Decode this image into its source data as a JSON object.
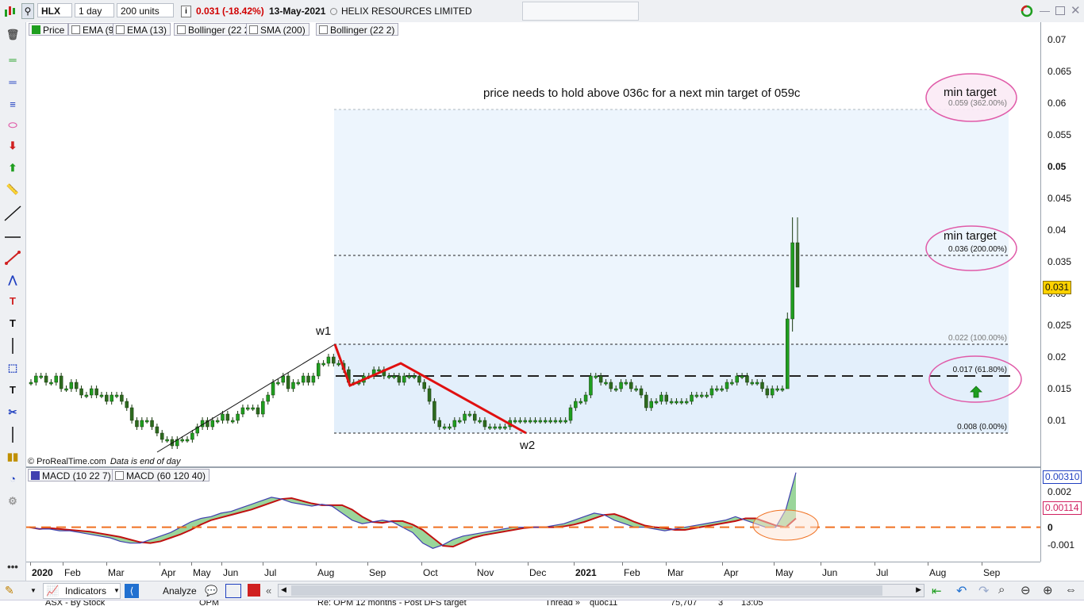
{
  "toolbar": {
    "symbol": "HLX",
    "interval": "1 day",
    "units": "200 units",
    "last_price": "0.031",
    "change": "(-18.42%)",
    "date": "13-May-2021",
    "company": "HELIX RESOURCES LIMITED",
    "change_color": "#d00000"
  },
  "legend_price": [
    "Price",
    "EMA (9)",
    "EMA (13)",
    "Bollinger (22 2)",
    "SMA (200)",
    "Bollinger (22 2)"
  ],
  "legend_macd": [
    "MACD (10 22 7)",
    "MACD (60 120 40)"
  ],
  "annotations": {
    "headline": "price needs to hold above 036c for a next min target of 059c",
    "min_target_1": "min target",
    "min_target_2": "min target",
    "w1": "w1",
    "w2": "w2",
    "fib": [
      {
        "price": 0.059,
        "label": "0.059 (362.00%)"
      },
      {
        "price": 0.036,
        "label": "0.036 (200.00%)"
      },
      {
        "price": 0.022,
        "label": "0.022 (100.00%)"
      },
      {
        "price": 0.017,
        "label": "0.017 (61.80%)"
      },
      {
        "price": 0.008,
        "label": "0.008 (0.00%)"
      }
    ],
    "copyright": "© ProRealTime.com",
    "data_note": "Data is end of day"
  },
  "price_axis": [
    "0.07",
    "0.065",
    "0.06",
    "0.055",
    "0.05",
    "0.045",
    "0.04",
    "0.035",
    "0.03",
    "0.025",
    "0.02",
    "0.015",
    "0.01"
  ],
  "price_badge": "0.031",
  "macd_axis": [
    "0.002",
    "0",
    "-0.001"
  ],
  "macd_badges": [
    "0.00310",
    "0.00114"
  ],
  "x_axis": [
    "2020",
    "Feb",
    "Mar",
    "Apr",
    "May",
    "Jun",
    "Jul",
    "Aug",
    "Sep",
    "Oct",
    "Nov",
    "Dec",
    "2021",
    "Feb",
    "Mar",
    "Apr",
    "May",
    "Jun",
    "Jul",
    "Aug",
    "Sep"
  ],
  "bottom": {
    "indicators": "Indicators",
    "analyze": "Analyze"
  },
  "status_strip": [
    "ASX - By Stock",
    "OPM",
    "Re: OPM 12 months - Post DFS target",
    "Thread »",
    "quoc11",
    "75,707",
    "3",
    "13:05"
  ],
  "colors": {
    "bar_up": "#1f9e1f",
    "bar_down": "#2d6a1e",
    "wave_red": "#e01010",
    "ellipse": "#e05aa8",
    "macd_zero": "#f07020"
  },
  "chart_data": {
    "type": "bar",
    "title": "",
    "xlabel": "",
    "ylabel": "",
    "ylim": [
      0.005,
      0.072
    ],
    "series": [
      {
        "values": [
          0.016,
          0.017,
          0.017,
          0.016,
          0.016,
          0.017,
          0.015,
          0.015,
          0.016,
          0.015,
          0.014,
          0.014,
          0.015,
          0.014,
          0.014,
          0.013,
          0.014,
          0.014,
          0.013,
          0.012,
          0.01,
          0.009,
          0.01,
          0.01,
          0.009,
          0.008,
          0.007,
          0.007,
          0.006,
          0.007,
          0.007,
          0.007,
          0.008,
          0.009,
          0.01,
          0.009,
          0.01,
          0.01,
          0.011,
          0.01,
          0.01,
          0.011,
          0.012,
          0.012,
          0.012,
          0.011,
          0.013,
          0.014,
          0.016,
          0.016,
          0.017,
          0.015,
          0.016,
          0.016,
          0.017,
          0.016,
          0.017,
          0.019,
          0.019,
          0.02,
          0.019,
          0.019,
          0.018,
          0.016,
          0.016,
          0.016,
          0.017,
          0.017,
          0.018,
          0.018,
          0.017,
          0.017,
          0.017,
          0.016,
          0.017,
          0.017,
          0.017,
          0.016,
          0.015,
          0.013,
          0.01,
          0.009,
          0.009,
          0.009,
          0.01,
          0.01,
          0.011,
          0.011,
          0.01,
          0.01,
          0.009,
          0.009,
          0.009,
          0.009,
          0.009,
          0.01,
          0.01,
          0.01,
          0.01,
          0.01,
          0.01,
          0.01,
          0.01,
          0.01,
          0.01,
          0.01,
          0.01,
          0.012,
          0.013,
          0.013,
          0.014,
          0.017,
          0.017,
          0.016,
          0.016,
          0.015,
          0.015,
          0.016,
          0.016,
          0.015,
          0.015,
          0.014,
          0.012,
          0.013,
          0.013,
          0.014,
          0.013,
          0.013,
          0.013,
          0.013,
          0.013,
          0.014,
          0.014,
          0.014,
          0.014,
          0.015,
          0.015,
          0.015,
          0.016,
          0.016,
          0.017,
          0.017,
          0.016,
          0.016,
          0.016,
          0.015,
          0.014,
          0.015,
          0.015,
          0.015,
          0.026,
          0.038,
          0.031
        ]
      }
    ],
    "macd": {
      "values": [
        0.0,
        -0.0001,
        -0.0001,
        -0.0002,
        -0.0002,
        -0.0003,
        -0.0004,
        -0.0005,
        -0.0006,
        -0.0008,
        -0.0009,
        -0.0009,
        -0.0007,
        -0.0005,
        -0.0003,
        0.0,
        0.0003,
        0.0005,
        0.0006,
        0.0008,
        0.0009,
        0.0011,
        0.0013,
        0.0015,
        0.0017,
        0.0016,
        0.0014,
        0.0013,
        0.0012,
        0.0013,
        0.0012,
        0.0008,
        0.0004,
        0.0002,
        0.0003,
        0.0004,
        0.0003,
        0.0,
        -0.0003,
        -0.0009,
        -0.0012,
        -0.001,
        -0.0007,
        -0.0005,
        -0.0004,
        -0.0003,
        -0.0002,
        -0.0001,
        0.0,
        0.0,
        0.0,
        0.0,
        0.0001,
        0.0002,
        0.0004,
        0.0006,
        0.0008,
        0.0007,
        0.0004,
        0.0002,
        0.0,
        0.0,
        -0.0001,
        -0.0002,
        -0.0001,
        0.0,
        0.0001,
        0.0002,
        0.0003,
        0.0004,
        0.0006,
        0.0004,
        0.0002,
        0.0,
        0.0,
        0.001,
        0.0031
      ]
    }
  }
}
